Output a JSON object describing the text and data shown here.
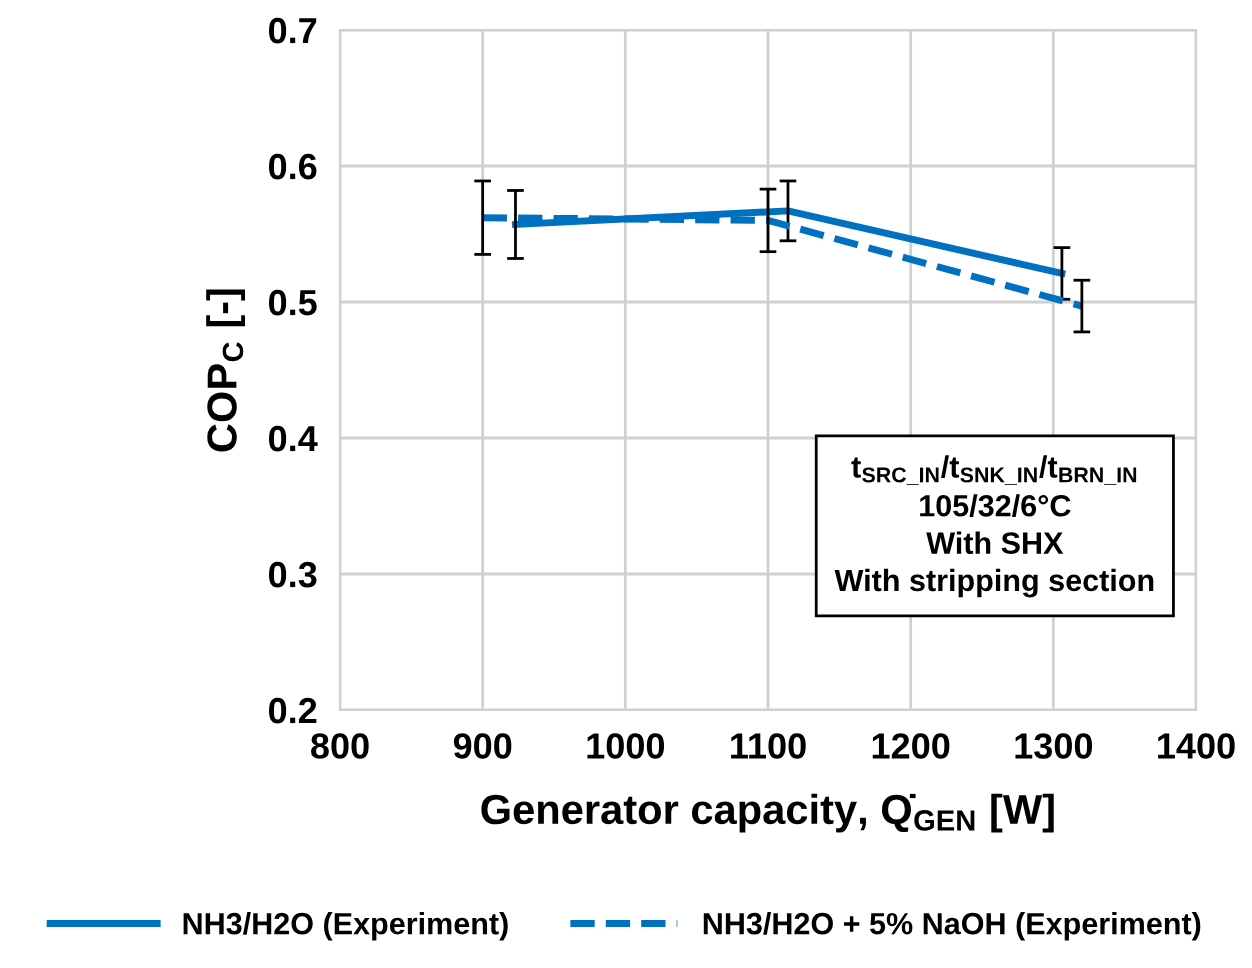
{
  "chart_data": {
    "type": "line",
    "xlabel": "Generator capacity, Q̇$_{GEN}$ [W]",
    "ylabel": "COP$_{C}$ [-]",
    "xlim": [
      800,
      1400
    ],
    "xticks": [
      800,
      900,
      1000,
      1100,
      1200,
      1300,
      1400
    ],
    "ylim": [
      0.2,
      0.7
    ],
    "yticks": [
      0.2,
      0.3,
      0.4,
      0.5,
      0.6,
      0.7
    ],
    "grid": true,
    "legend": "bottom",
    "marker": "none",
    "annotations": [
      "t$_{SRC_IN}$/t$_{SNK_IN}$/t$_{BRN_IN}$\n105/32/6°C\nWith SHX\nWith stripping section"
    ],
    "series": [
      {
        "name": "NH3/H2O (Experiment)",
        "color": "#0070c0",
        "line_style": "solid",
        "x": [
          923,
          1114,
          1306
        ],
        "values": [
          0.557,
          0.567,
          0.521
        ],
        "errors": [
          0.025,
          0.022,
          0.019
        ]
      },
      {
        "name": "NH3/H2O + 5% NaOH (Experiment)",
        "color": "#0070c0",
        "line_style": "dashed",
        "x": [
          900,
          1100,
          1320
        ],
        "values": [
          0.562,
          0.56,
          0.497
        ],
        "errors": [
          0.027,
          0.023,
          0.019
        ]
      }
    ]
  }
}
